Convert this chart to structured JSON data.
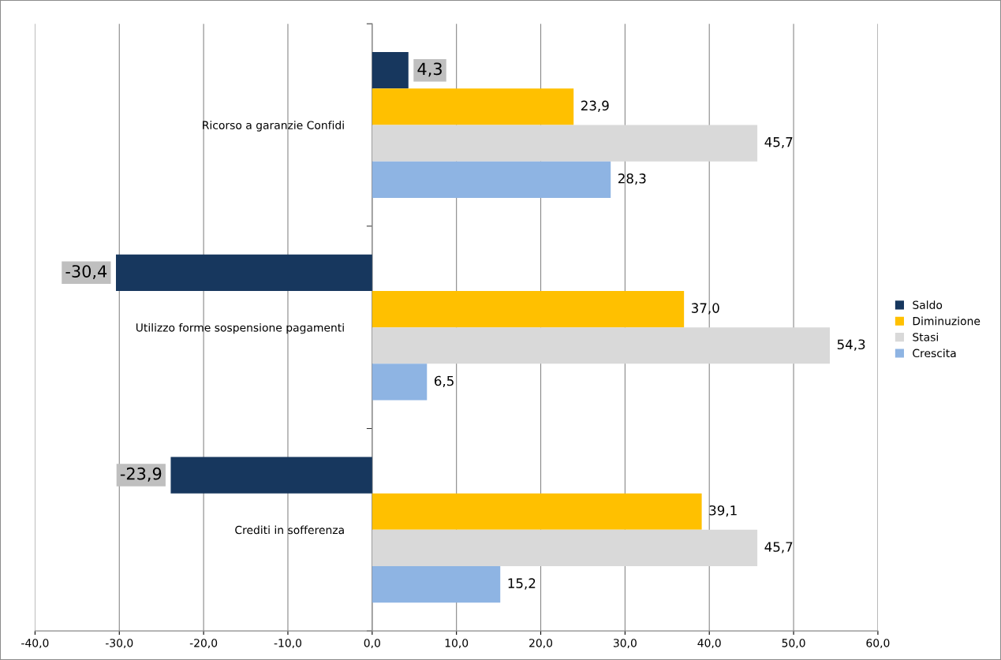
{
  "chart_data": {
    "type": "bar",
    "orientation": "horizontal",
    "categories": [
      "Ricorso a garanzie Confidi",
      "Utilizzo forme sospensione pagamenti",
      "Crediti in sofferenza"
    ],
    "series": [
      {
        "name": "Saldo",
        "color": "#17375e",
        "values": [
          4.3,
          -30.4,
          -23.9
        ],
        "value_labels": [
          "4,3",
          "-30,4",
          "-23,9"
        ]
      },
      {
        "name": "Diminuzione",
        "color": "#ffc000",
        "values": [
          23.9,
          37.0,
          39.1
        ],
        "value_labels": [
          "23,9",
          "37,0",
          "39,1"
        ]
      },
      {
        "name": "Stasi",
        "color": "#d9d9d9",
        "values": [
          45.7,
          54.3,
          45.7
        ],
        "value_labels": [
          "45,7",
          "54,3",
          "45,7"
        ]
      },
      {
        "name": "Crescita",
        "color": "#8eb4e3",
        "values": [
          28.3,
          6.5,
          15.2
        ],
        "value_labels": [
          "28,3",
          "6,5",
          "15,2"
        ]
      }
    ],
    "xlim": [
      -40,
      60
    ],
    "xticks": [
      {
        "value": -40,
        "label": "-40,0"
      },
      {
        "value": -30,
        "label": "-30,0"
      },
      {
        "value": -20,
        "label": "-20,0"
      },
      {
        "value": -10,
        "label": "-10,0"
      },
      {
        "value": 0,
        "label": "0,0"
      },
      {
        "value": 10,
        "label": "10,0"
      },
      {
        "value": 20,
        "label": "20,0"
      },
      {
        "value": 30,
        "label": "30,0"
      },
      {
        "value": 40,
        "label": "40,0"
      },
      {
        "value": 50,
        "label": "50,0"
      },
      {
        "value": 60,
        "label": "60,0"
      }
    ],
    "grid": "x",
    "legend": "right"
  }
}
